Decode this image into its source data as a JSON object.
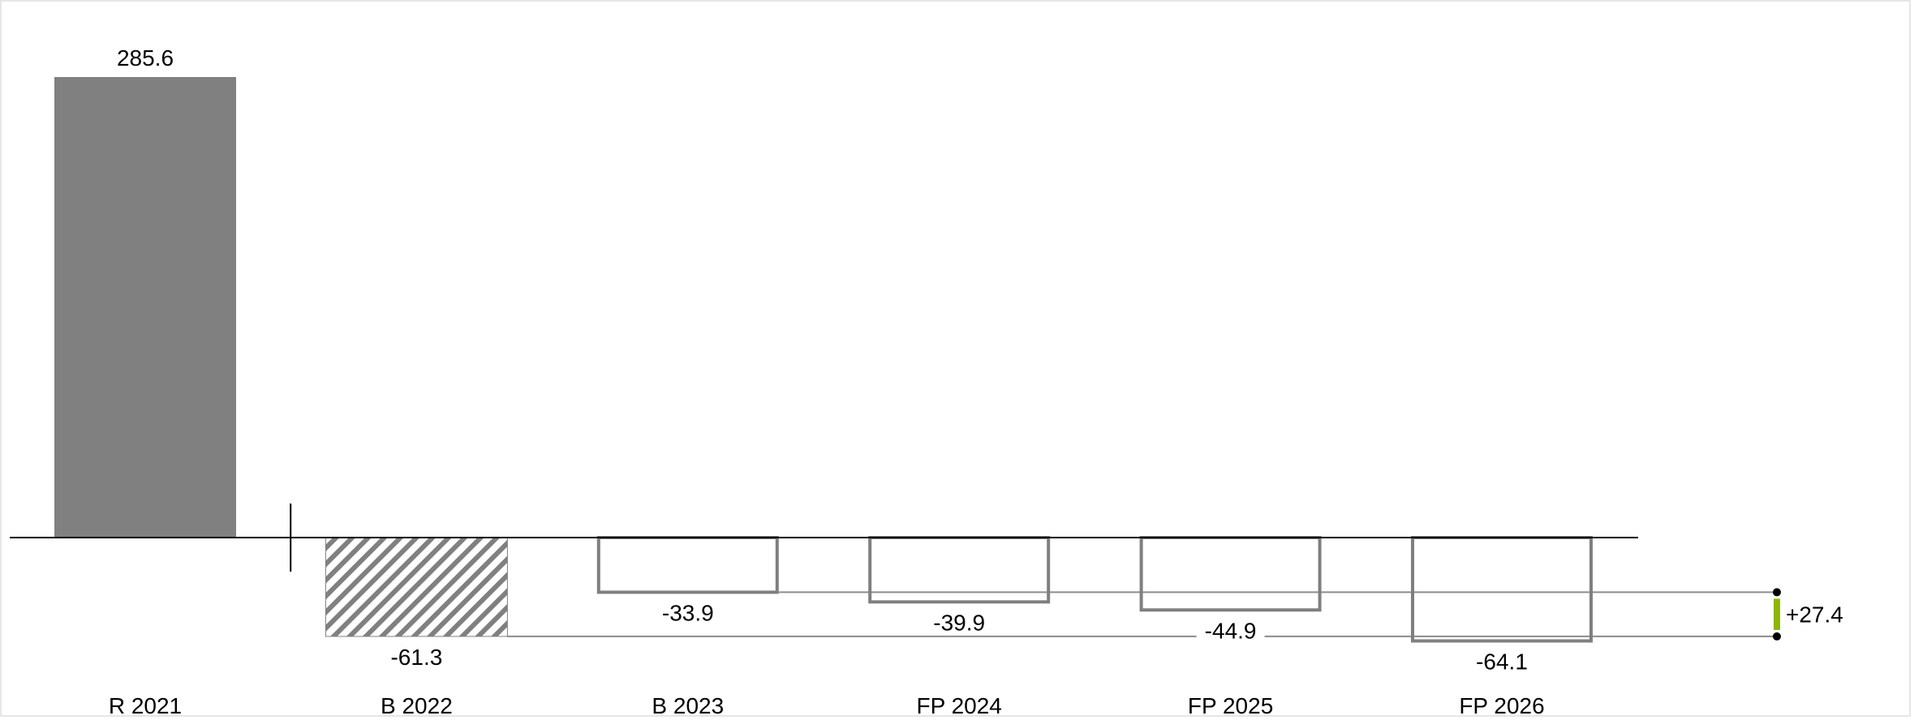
{
  "chart_data": {
    "type": "bar",
    "title": "",
    "xlabel": "",
    "ylabel": "",
    "categories": [
      "R 2021",
      "B 2022",
      "B 2023",
      "FP 2024",
      "FP 2025",
      "FP 2026"
    ],
    "values": [
      285.6,
      -61.3,
      -33.9,
      -39.9,
      -44.9,
      -64.1
    ],
    "value_labels": [
      "285.6",
      "-61.3",
      "-33.9",
      "-39.9",
      "-44.9",
      "-64.1"
    ],
    "styles": [
      "solid",
      "hatched",
      "outline",
      "outline",
      "outline",
      "outline"
    ],
    "ylim": [
      -64.1,
      285.6
    ],
    "grid": false,
    "legend": "none",
    "difference": {
      "label": "+27.4",
      "value": 27.4,
      "from": -61.3,
      "to": -33.9
    },
    "colors": {
      "bar_fill": "#808080",
      "outline": "#7f7f7f",
      "axis": "#000000",
      "reference_line": "#8c8c8c",
      "difference_positive": "#8db600"
    }
  }
}
